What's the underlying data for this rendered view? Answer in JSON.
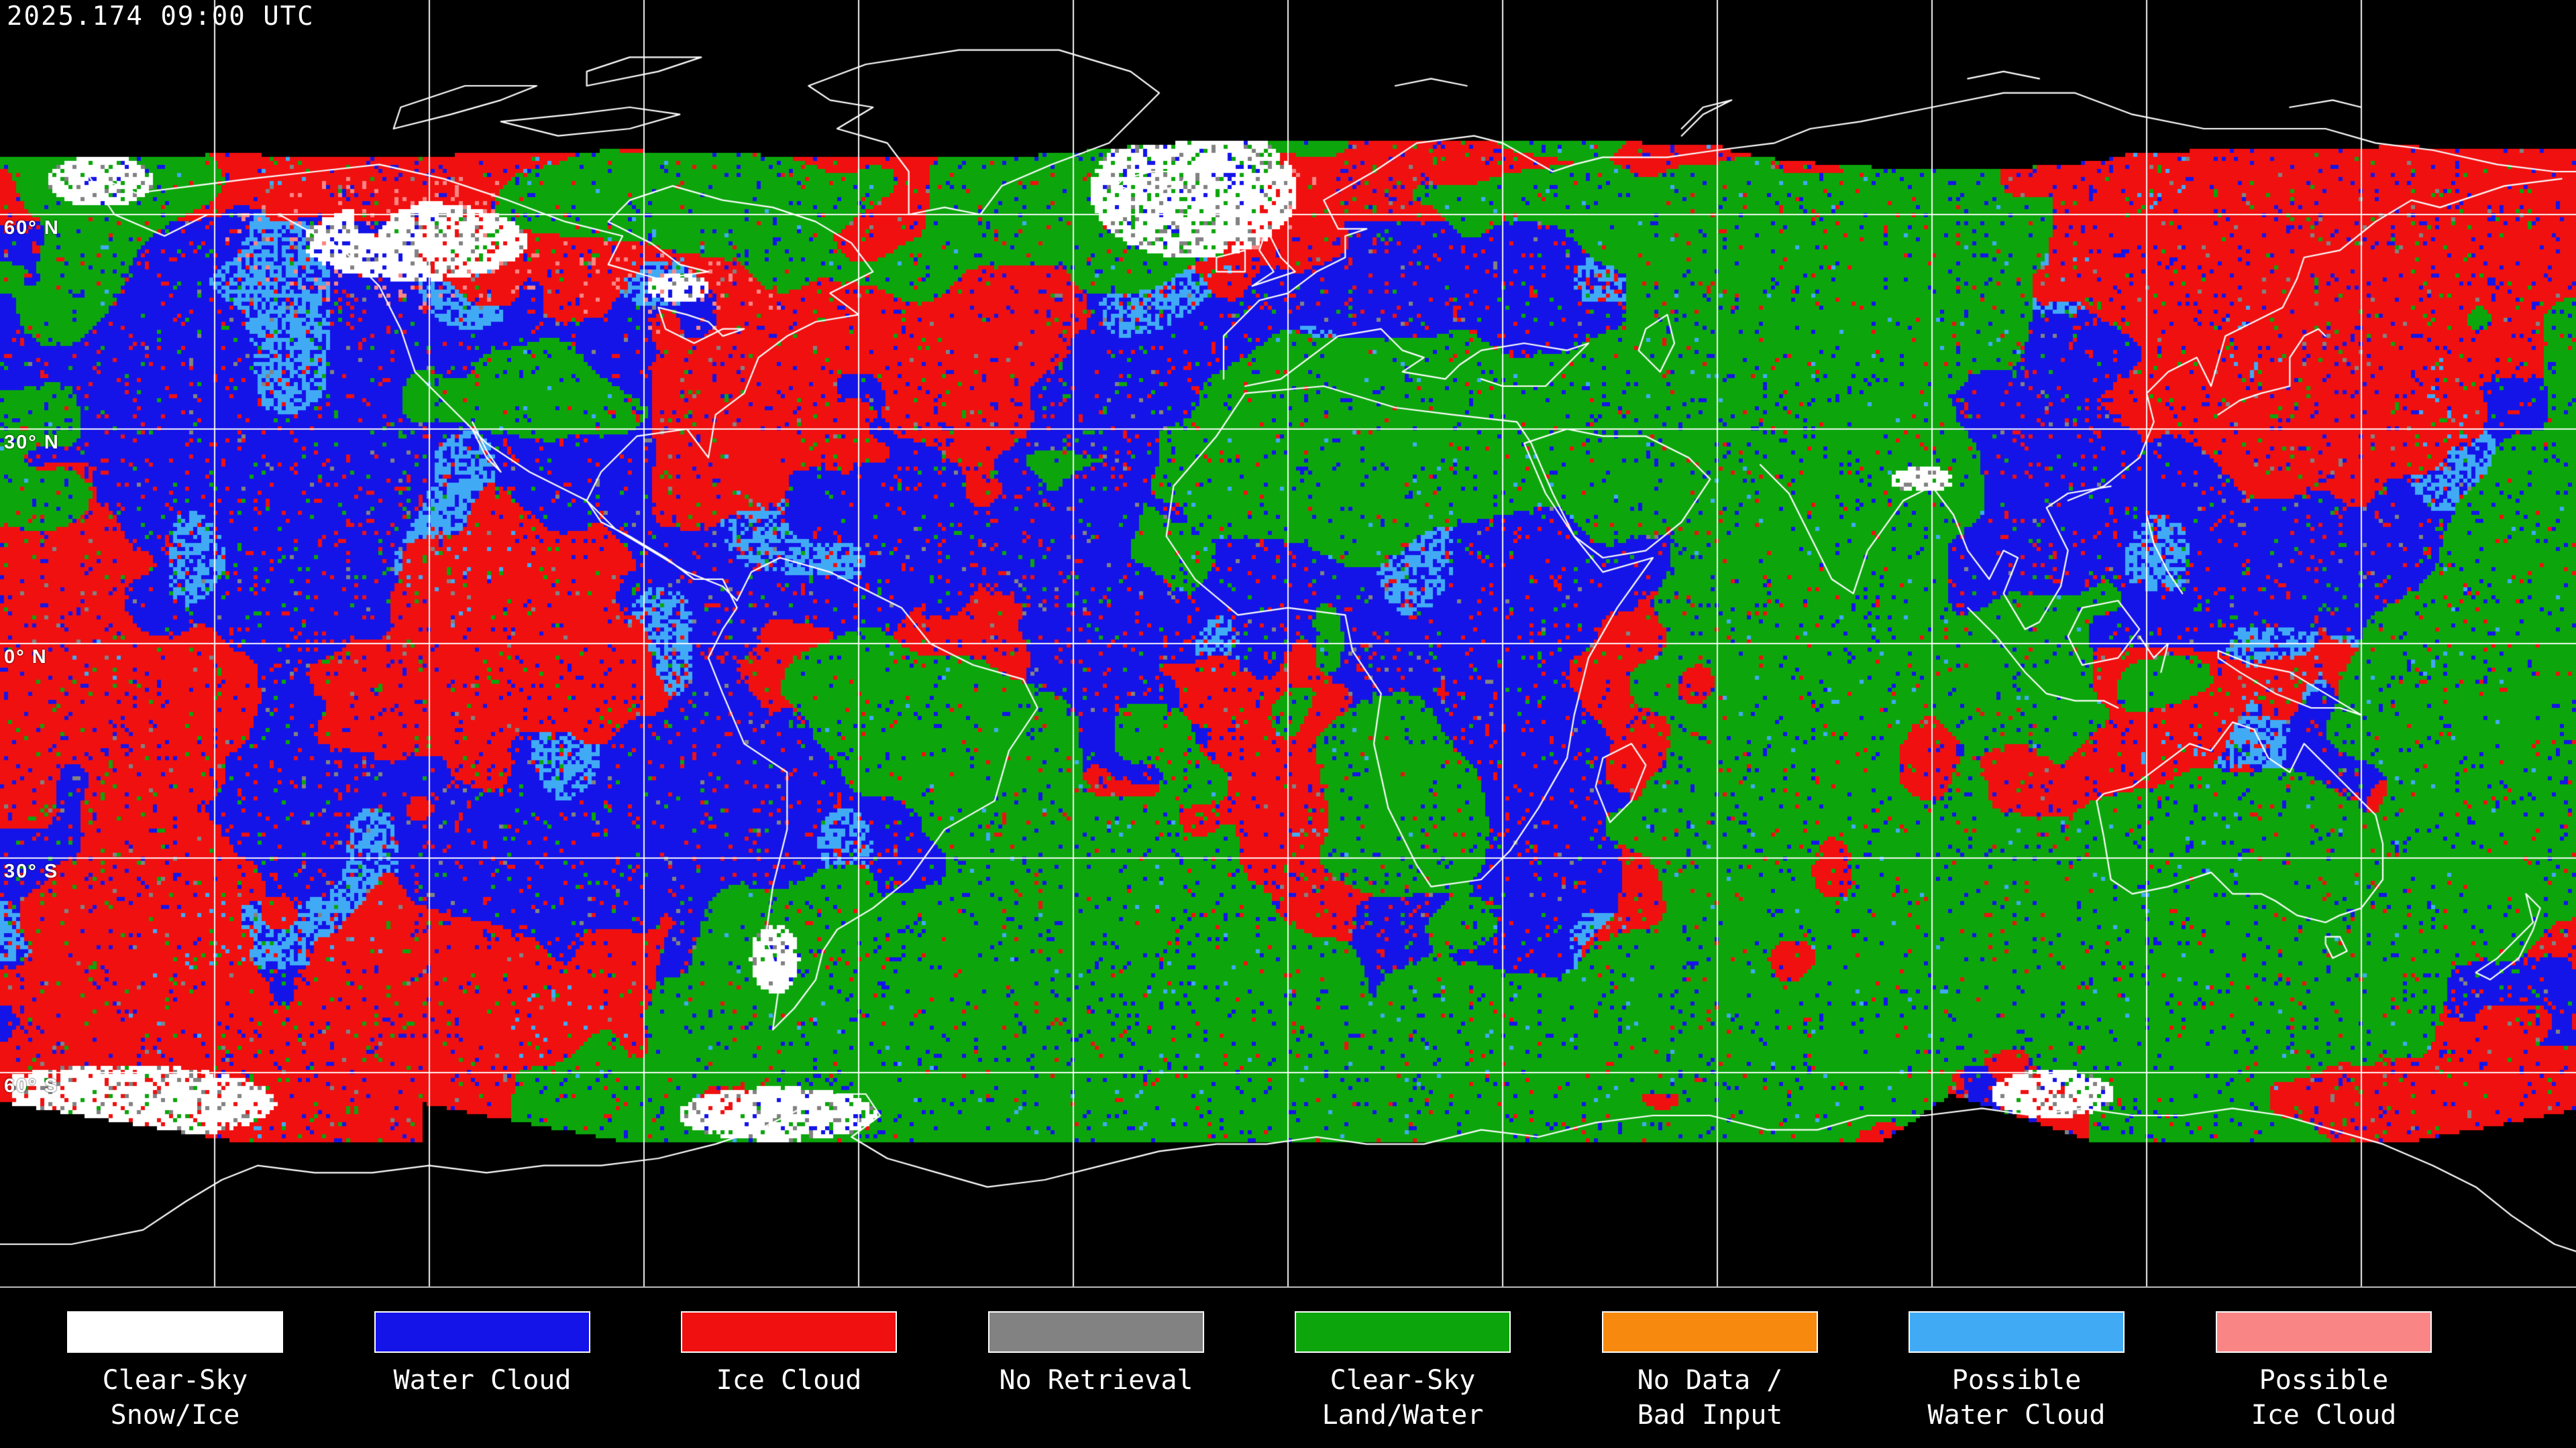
{
  "header": {
    "timestamp": "2025.174 09:00 UTC"
  },
  "map": {
    "lat_labels": [
      {
        "text": "60° N"
      },
      {
        "text": "30° N"
      },
      {
        "text": "0° N"
      },
      {
        "text": "30° S"
      },
      {
        "text": "60° S"
      }
    ]
  },
  "legend": {
    "items": [
      {
        "id": "clear-sky-snow-ice",
        "color": "#FFFFFF",
        "line1": "Clear-Sky",
        "line2": "Snow/Ice"
      },
      {
        "id": "water-cloud",
        "color": "#1414E8",
        "line1": "Water Cloud",
        "line2": ""
      },
      {
        "id": "ice-cloud",
        "color": "#F01010",
        "line1": "Ice Cloud",
        "line2": ""
      },
      {
        "id": "no-retrieval",
        "color": "#828282",
        "line1": "No Retrieval",
        "line2": ""
      },
      {
        "id": "clear-sky-land-water",
        "color": "#0CA60C",
        "line1": "Clear-Sky",
        "line2": "Land/Water"
      },
      {
        "id": "no-data-bad-input",
        "color": "#F8890F",
        "line1": "No Data /",
        "line2": "Bad Input"
      },
      {
        "id": "possible-water-cloud",
        "color": "#41AAF5",
        "line1": "Possible",
        "line2": "Water Cloud"
      },
      {
        "id": "possible-ice-cloud",
        "color": "#FA8585",
        "line1": "Possible",
        "line2": "Ice Cloud"
      }
    ]
  }
}
